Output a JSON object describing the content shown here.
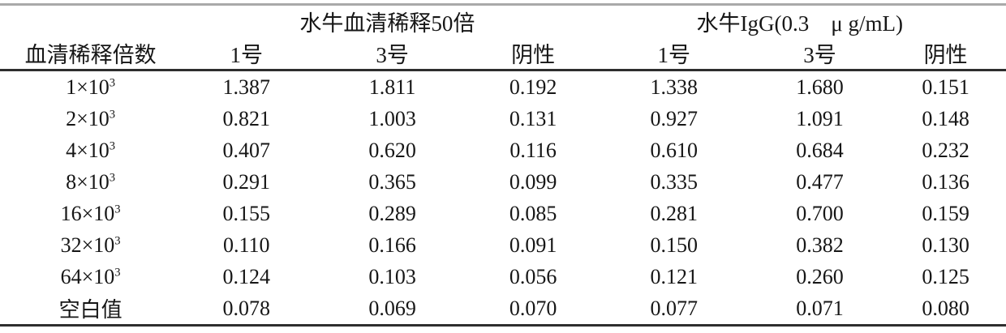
{
  "table": {
    "header": {
      "blank": "",
      "group1": "水牛血清稀释50倍",
      "group2": "水牛IgG(0.3　μ g/mL)"
    },
    "columns": [
      "血清稀释倍数",
      "1号",
      "3号",
      "阴性",
      "1号",
      "3号",
      "阴性"
    ],
    "rows": [
      {
        "dilution": "1×10",
        "exp": "3",
        "values": [
          "1.387",
          "1.811",
          "0.192",
          "1.338",
          "1.680",
          "0.151"
        ]
      },
      {
        "dilution": "2×10",
        "exp": "3",
        "values": [
          "0.821",
          "1.003",
          "0.131",
          "0.927",
          "1.091",
          "0.148"
        ]
      },
      {
        "dilution": "4×10",
        "exp": "3",
        "values": [
          "0.407",
          "0.620",
          "0.116",
          "0.610",
          "0.684",
          "0.232"
        ]
      },
      {
        "dilution": "8×10",
        "exp": "3",
        "values": [
          "0.291",
          "0.365",
          "0.099",
          "0.335",
          "0.477",
          "0.136"
        ]
      },
      {
        "dilution": "16×10",
        "exp": "3",
        "values": [
          "0.155",
          "0.289",
          "0.085",
          "0.281",
          "0.700",
          "0.159"
        ]
      },
      {
        "dilution": "32×10",
        "exp": "3",
        "values": [
          "0.110",
          "0.166",
          "0.091",
          "0.150",
          "0.382",
          "0.130"
        ]
      },
      {
        "dilution": "64×10",
        "exp": "3",
        "values": [
          "0.124",
          "0.103",
          "0.056",
          "0.121",
          "0.260",
          "0.125"
        ]
      },
      {
        "dilution": "空白值",
        "exp": "",
        "values": [
          "0.078",
          "0.069",
          "0.070",
          "0.077",
          "0.071",
          "0.080"
        ]
      }
    ],
    "rules": {
      "top_rule_color": "#a9a9a9",
      "header_rule_color": "#2e2e2e",
      "bottom_rule_color": "#2e2e2e"
    }
  }
}
